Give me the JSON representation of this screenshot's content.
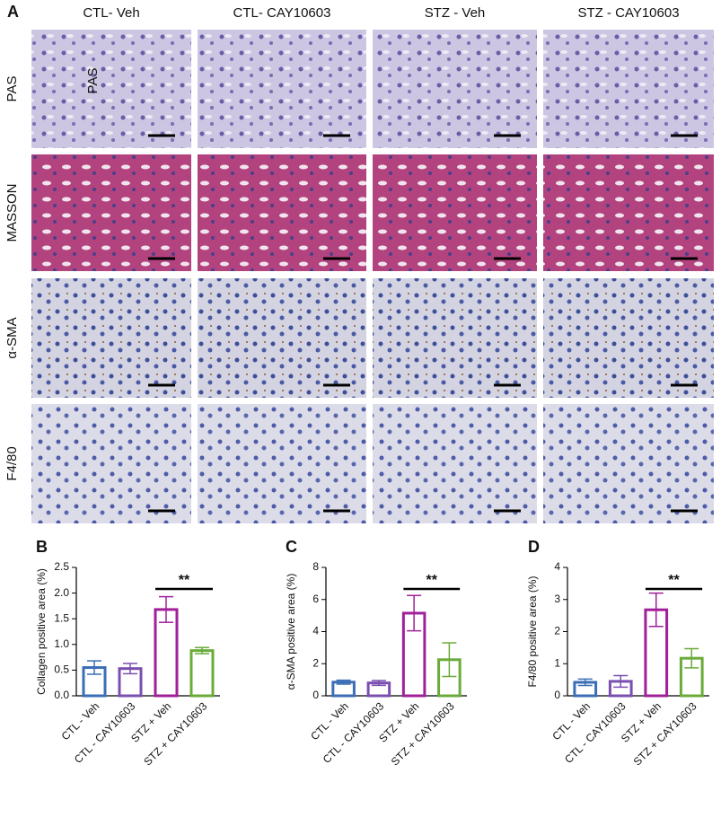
{
  "figure": {
    "label": "A",
    "columns": [
      "CTL- Veh",
      "CTL- CAY10603",
      "STZ - Veh",
      "STZ - CAY10603"
    ],
    "rows": [
      "PAS",
      "MASSON",
      "α-SMA",
      "F4/80"
    ],
    "annotation": "PAS"
  },
  "chart_data": [
    {
      "type": "bar",
      "label": "B",
      "ylabel": "Collagen positive area (%)",
      "categories": [
        "CTL - Veh",
        "CTL - CAY10603",
        "STZ + Veh",
        "STZ + CAY10603"
      ],
      "values": [
        0.55,
        0.53,
        1.68,
        0.88
      ],
      "errors": [
        0.13,
        0.1,
        0.25,
        0.06
      ],
      "colors": [
        "#3a6fb5",
        "#7b4fb0",
        "#a0209a",
        "#6aab3a"
      ],
      "ylim": [
        0,
        2.5
      ],
      "yticks": [
        {
          "value": 0,
          "label": "0.0"
        },
        {
          "value": 0.5,
          "label": "0.5"
        },
        {
          "value": 1,
          "label": "1.0"
        },
        {
          "value": 1.5,
          "label": "1.5"
        },
        {
          "value": 2,
          "label": "2.0"
        },
        {
          "value": 2.5,
          "label": "2.5"
        }
      ],
      "annotation": "**"
    },
    {
      "type": "bar",
      "label": "C",
      "ylabel": "α-SMA positive area (%)",
      "categories": [
        "CTL - Veh",
        "CTL - CAY10603",
        "STZ + Veh",
        "STZ + CAY10603"
      ],
      "values": [
        0.85,
        0.8,
        5.15,
        2.25
      ],
      "errors": [
        0.12,
        0.15,
        1.1,
        1.05
      ],
      "colors": [
        "#3a6fb5",
        "#7b4fb0",
        "#a0209a",
        "#6aab3a"
      ],
      "ylim": [
        0,
        8
      ],
      "yticks": [
        0,
        2,
        4,
        6,
        8
      ],
      "annotation": "**"
    },
    {
      "type": "bar",
      "label": "D",
      "ylabel": "F4/80 positive area (%)",
      "categories": [
        "CTL - Veh",
        "CTL - CAY10603",
        "STZ + Veh",
        "STZ + CAY10603"
      ],
      "values": [
        0.42,
        0.45,
        2.68,
        1.17
      ],
      "errors": [
        0.1,
        0.18,
        0.52,
        0.3
      ],
      "colors": [
        "#3a6fb5",
        "#7b4fb0",
        "#a0209a",
        "#6aab3a"
      ],
      "ylim": [
        0,
        4
      ],
      "yticks": [
        0,
        1,
        2,
        3,
        4
      ],
      "annotation": "**"
    }
  ]
}
